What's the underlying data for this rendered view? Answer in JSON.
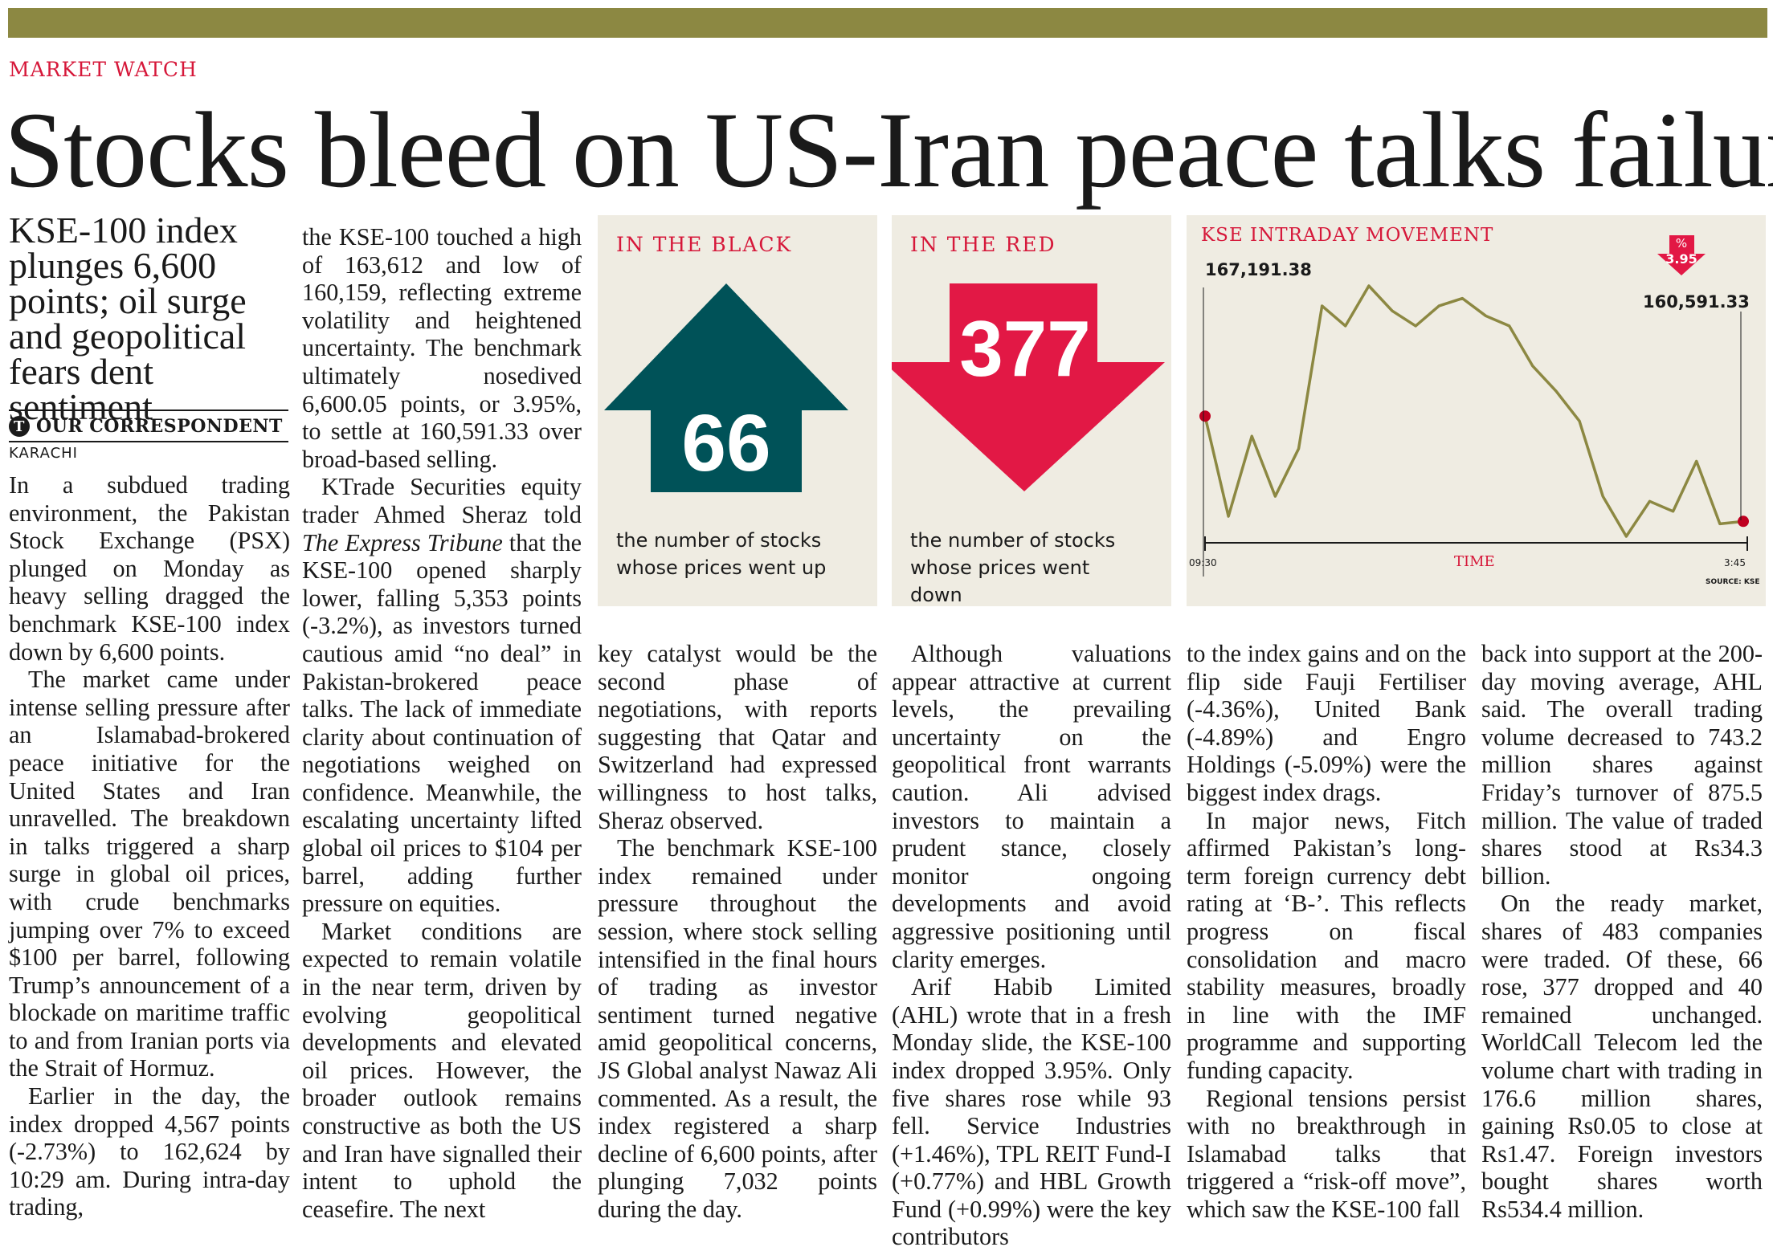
{
  "kicker": "MARKET WATCH",
  "headline": "Stocks bleed on US-Iran peace talks failure",
  "deck": "KSE-100 index plunges 6,600 points; oil surge and geopolitical fears dent sentiment",
  "byline": {
    "logo": "T",
    "author": "OUR CORRESPONDENT",
    "dateline": "KARACHI"
  },
  "colors": {
    "rule_bar": "#8c8842",
    "red": "#d6183a",
    "teal": "#005258",
    "box_bg": "#efece2",
    "line": "#8c8842"
  },
  "black_box": {
    "title": "IN THE BLACK",
    "value": "66",
    "caption_1": "the number of stocks",
    "caption_2": "whose prices went up",
    "icon": "up-arrow"
  },
  "red_box": {
    "title": "IN THE RED",
    "value": "377",
    "caption_1": "the number of stocks",
    "caption_2": "whose prices went down",
    "icon": "down-arrow"
  },
  "chart": {
    "title": "KSE INTRADAY MOVEMENT",
    "pct_label": "%",
    "pct_value": "3.95",
    "start_label": "167,191.38",
    "end_label": "160,591.33",
    "x_start": "09:30",
    "x_end": "3:45",
    "x_title": "TIME",
    "source": "SOURCE: KSE"
  },
  "chart_data": {
    "type": "line",
    "title": "KSE INTRADAY MOVEMENT",
    "xlabel": "TIME",
    "x_ticks": [
      "09:30",
      "3:45"
    ],
    "start_value": 167191.38,
    "end_value": 160591.33,
    "change_pct": -3.95,
    "annotations": [
      "167,191.38",
      "160,591.33",
      "% 3.95"
    ],
    "source": "SOURCE: KSE",
    "relative_shape": [
      0.48,
      0.08,
      0.4,
      0.16,
      0.35,
      0.92,
      0.84,
      1.0,
      0.9,
      0.84,
      0.92,
      0.95,
      0.88,
      0.84,
      0.68,
      0.58,
      0.46,
      0.16,
      0.0,
      0.14,
      0.1,
      0.3,
      0.05,
      0.06
    ]
  },
  "article": {
    "col1": [
      "In a subdued trading environment, the Pakistan Stock Exchange (PSX) plunged on Monday as heavy selling dragged the benchmark KSE-100 index down by 6,600 points.",
      "The market came under intense selling pressure after an Islamabad-brokered peace initiative for the United States and Iran unravelled. The breakdown in talks triggered a sharp surge in global oil prices, with crude benchmarks jumping over 7% to exceed $100 per barrel, following Trump’s announcement of a blockade on maritime traffic to and from Iranian ports via the Strait of Hormuz.",
      "Earlier in the day, the index dropped 4,567 points (-2.73%) to 162,624 by 10:29 am. During intra-day trading,"
    ],
    "col2_p1": "the KSE-100 touched a high of 163,612 and low of 160,159, reflecting extreme volatility and heightened uncertainty. The benchmark ultimately nosedived 6,600.05 points, or 3.95%, to settle at 160,591.33 over broad-based selling.",
    "col2_p2_a": "KTrade Securities equity trader Ahmed Sheraz told ",
    "col2_p2_italic": "The Express Tribune",
    "col2_p2_b": " that the KSE-100 opened sharply lower, falling 5,353 points (-3.2%), as investors turned cautious amid “no deal” in Pakistan-brokered peace talks. The lack of immediate clarity about continuation of negotiations weighed on confidence. Meanwhile, the escalating uncertainty lifted global oil prices to $104 per barrel, adding further pressure on equities.",
    "col2_p3": "Market conditions are expected to remain volatile in the near term, driven by evolving geopolitical developments and elevated oil prices. However, the broader outlook remains constructive as both the US and Iran have signalled their intent to uphold the ceasefire. The next",
    "col3": [
      "key catalyst would be the second phase of negotiations, with reports suggesting that Qatar and Switzerland had expressed willingness to host talks, Sheraz observed.",
      "The benchmark KSE-100 index remained under pressure throughout the session, where stock selling intensified in the final hours of trading as investor sentiment turned negative amid geopolitical concerns, JS Global analyst Nawaz Ali commented. As a result, the index registered a sharp decline of 6,600 points, after plunging 7,032 points during the day."
    ],
    "col4": [
      "Although valuations appear attractive at current levels, the prevailing uncertainty on the geopolitical front warrants caution. Ali advised investors to maintain a prudent stance, closely monitor ongoing developments and avoid aggressive positioning until clarity emerges.",
      "Arif Habib Limited (AHL) wrote that in a fresh Monday slide, the KSE-100 index dropped 3.95%. Only five shares rose while 93 fell. Service Industries (+1.46%), TPL REIT Fund-I (+0.77%) and HBL Growth Fund (+0.99%) were the key contributors"
    ],
    "col5": [
      "to the index gains and on the flip side Fauji Fertiliser (-4.36%), United Bank (-4.89%) and Engro Holdings (-5.09%) were the biggest index drags.",
      "In major news, Fitch affirmed Pakistan’s long-term foreign currency debt rating at ‘B-’. This reflects progress on fiscal consolidation and macro stability measures, broadly in line with the IMF programme and supporting funding capacity.",
      "Regional tensions persist with no breakthrough in Islamabad talks that triggered a “risk-off move”, which saw the KSE-100 fall"
    ],
    "col6": [
      "back into support at the 200-day moving average, AHL said. The overall trading volume decreased to 743.2 million shares against Friday’s turnover of 875.5 million. The value of traded shares stood at Rs34.3 billion.",
      "On the ready market, shares of 483 companies were traded. Of these, 66 rose, 377 dropped and 40 remained unchanged. WorldCall Telecom led the volume chart with trading in 176.6 million shares, gaining Rs0.05 to close at Rs1.47. Foreign investors bought shares worth Rs534.4 million."
    ]
  }
}
